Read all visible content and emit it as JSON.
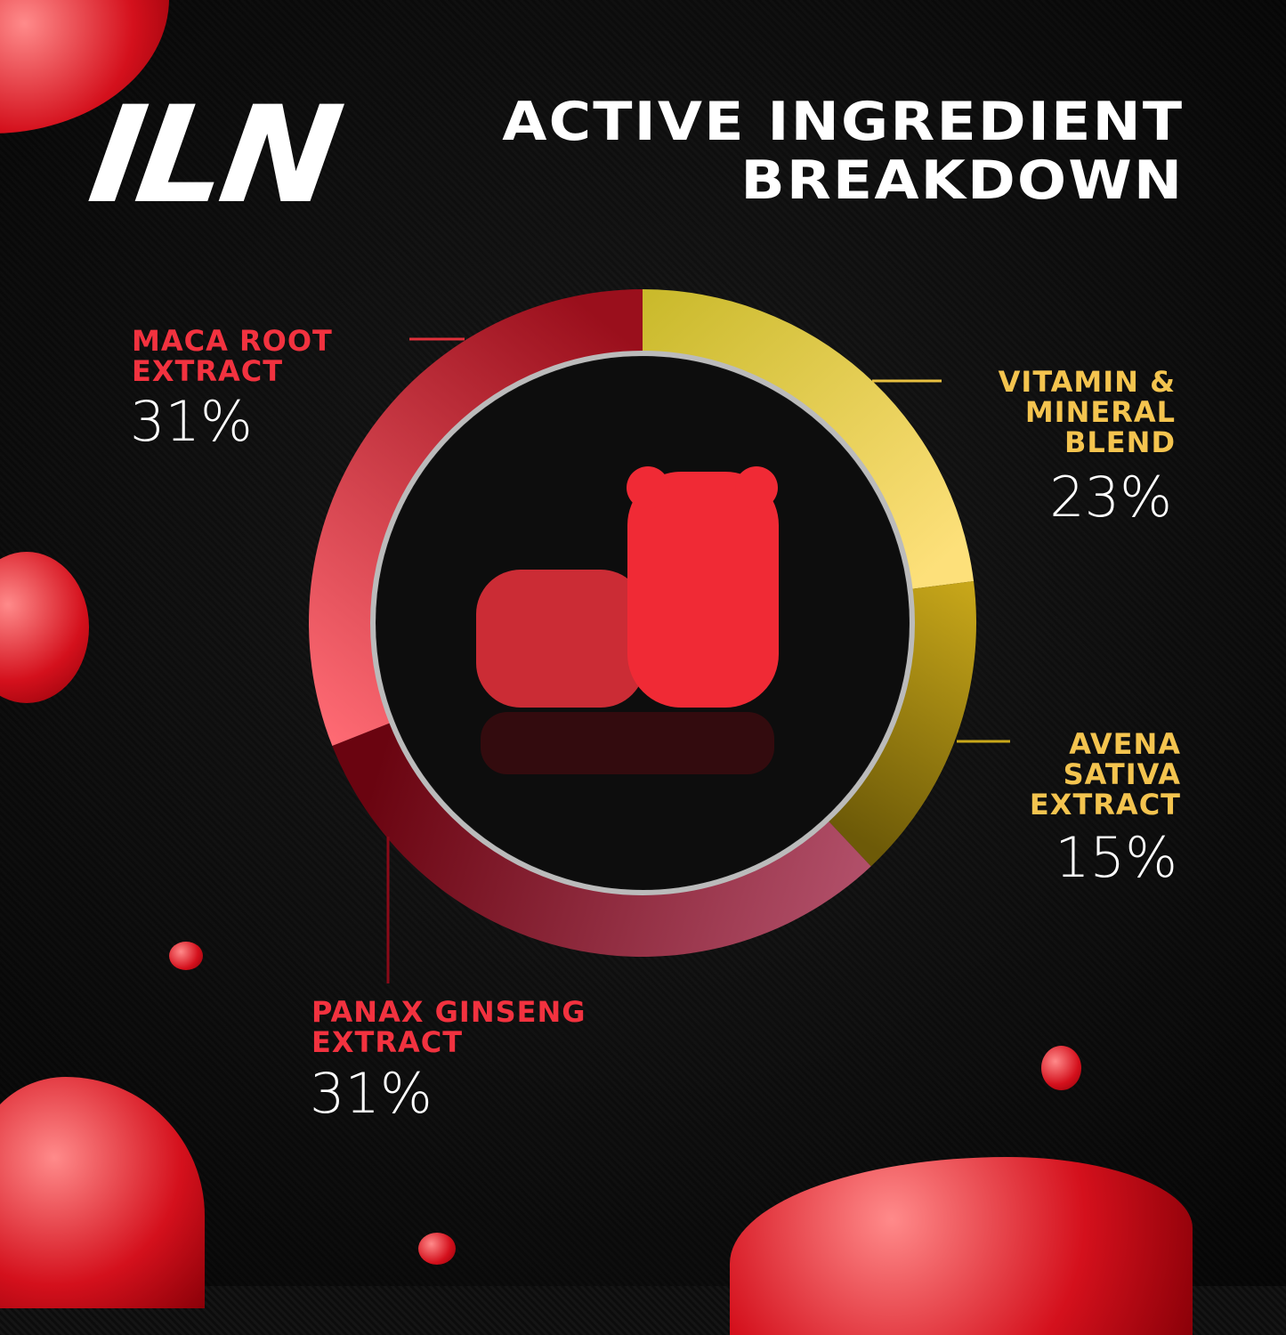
{
  "logo": {
    "text": "ILN"
  },
  "title": {
    "line1": "ACTIVE INGREDIENT",
    "line2": "BREAKDOWN"
  },
  "chart_data": {
    "type": "pie",
    "variant": "donut",
    "direction": "clockwise-from-top",
    "slices": [
      {
        "label_lines": [
          "VITAMIN &",
          "MINERAL",
          "BLEND"
        ],
        "label": "Vitamin & Mineral Blend",
        "value": 23,
        "display": "23%",
        "color_start": "#fde07a",
        "color_end": "#c9b92a"
      },
      {
        "label_lines": [
          "AVENA",
          "SATIVA",
          "EXTRACT"
        ],
        "label": "Avena Sativa Extract",
        "value": 15,
        "display": "15%",
        "color_start": "#6d5a08",
        "color_end": "#c9a81a"
      },
      {
        "label_lines": [
          "PANAX GINSENG",
          "EXTRACT"
        ],
        "label": "Panax Ginseng Extract",
        "value": 31,
        "display": "31%",
        "color_start": "#6a0410",
        "color_end": "#b2506a"
      },
      {
        "label_lines": [
          "MACA ROOT",
          "EXTRACT"
        ],
        "label": "Maca Root Extract",
        "value": 31,
        "display": "31%",
        "color_start": "#9a0f1c",
        "color_end": "#ff6b74"
      }
    ]
  },
  "colors": {
    "red_label": "#f2323f",
    "gold_label": "#f4c44f",
    "background": "#111111"
  }
}
